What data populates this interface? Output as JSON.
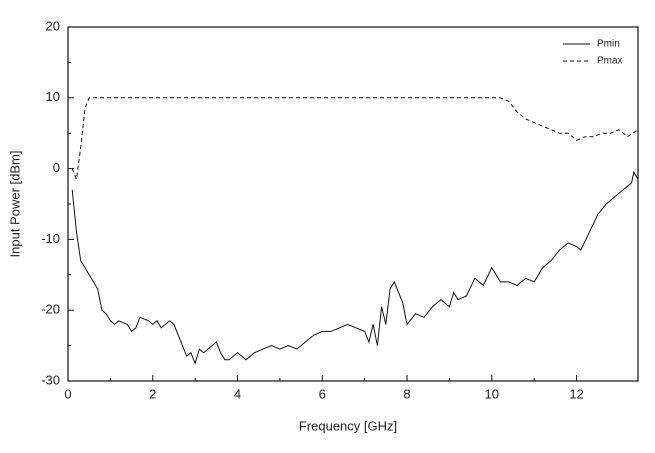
{
  "chart_data": {
    "type": "line",
    "x_label": "Frequency [GHz]",
    "y_label": "Input Power [dBm]",
    "xlim": [
      0,
      13.45
    ],
    "xticks": [
      0,
      2,
      4,
      6,
      8,
      10,
      12
    ],
    "ylim": [
      -30,
      20
    ],
    "yticks": [
      -30,
      -20,
      -10,
      0,
      10,
      20
    ],
    "legend": "upper right",
    "series": [
      {
        "name": "Pmin",
        "color": "#111111",
        "dash": "solid",
        "x": [
          0.1,
          0.2,
          0.3,
          0.5,
          0.7,
          0.8,
          0.9,
          1.0,
          1.1,
          1.2,
          1.4,
          1.5,
          1.6,
          1.7,
          1.9,
          2.0,
          2.1,
          2.2,
          2.4,
          2.5,
          2.6,
          2.7,
          2.8,
          2.9,
          3.0,
          3.1,
          3.2,
          3.4,
          3.5,
          3.6,
          3.7,
          3.8,
          3.9,
          4.0,
          4.1,
          4.2,
          4.4,
          4.6,
          4.8,
          5.0,
          5.2,
          5.4,
          5.6,
          5.8,
          6.0,
          6.2,
          6.4,
          6.6,
          6.8,
          7.0,
          7.1,
          7.2,
          7.3,
          7.4,
          7.5,
          7.6,
          7.7,
          7.8,
          7.9,
          8.0,
          8.2,
          8.4,
          8.6,
          8.8,
          9.0,
          9.1,
          9.2,
          9.4,
          9.6,
          9.8,
          10.0,
          10.2,
          10.4,
          10.6,
          10.8,
          11.0,
          11.2,
          11.4,
          11.6,
          11.8,
          12.0,
          12.1,
          12.3,
          12.5,
          12.7,
          12.9,
          13.1,
          13.3,
          13.35,
          13.45
        ],
        "values": [
          -3,
          -9,
          -13,
          -15,
          -17,
          -20,
          -20.5,
          -21.5,
          -22,
          -21.5,
          -22,
          -23,
          -22.5,
          -21,
          -21.5,
          -22,
          -21.5,
          -22.5,
          -21.5,
          -22,
          -23.5,
          -25,
          -26.5,
          -26,
          -27.5,
          -25.5,
          -26,
          -25,
          -24.5,
          -26,
          -27,
          -27,
          -26.5,
          -26,
          -26.5,
          -27,
          -26,
          -25.5,
          -25,
          -25.5,
          -25,
          -25.5,
          -24.5,
          -23.5,
          -23,
          -23,
          -22.5,
          -22,
          -22.5,
          -23,
          -24.5,
          -22,
          -25,
          -19.5,
          -22,
          -17,
          -16,
          -17.5,
          -19,
          -22,
          -20.5,
          -21,
          -19.5,
          -18.5,
          -19.5,
          -17.5,
          -18.5,
          -18,
          -15.5,
          -16.5,
          -14,
          -16,
          -16,
          -16.5,
          -15.5,
          -16,
          -14,
          -13,
          -11.5,
          -10.5,
          -11,
          -11.5,
          -9,
          -6.5,
          -5,
          -4,
          -3,
          -2,
          -0.5,
          -1.5
        ]
      },
      {
        "name": "Pmax",
        "color": "#111111",
        "dash": "dashed",
        "x": [
          0.1,
          0.2,
          0.3,
          0.4,
          0.5,
          1.0,
          2.0,
          3.0,
          4.0,
          5.0,
          6.0,
          7.0,
          8.0,
          9.0,
          10.0,
          10.2,
          10.4,
          10.6,
          10.8,
          11.0,
          11.2,
          11.4,
          11.6,
          11.8,
          12.0,
          12.2,
          12.4,
          12.6,
          12.8,
          13.0,
          13.2,
          13.45
        ],
        "values": [
          0,
          -1.5,
          3,
          8.5,
          10,
          10,
          10,
          10,
          10,
          10,
          10,
          10,
          10,
          10,
          10,
          10,
          9.5,
          8,
          7,
          6.5,
          6,
          5.5,
          5,
          5,
          4,
          4.5,
          4.5,
          5,
          5,
          5.5,
          4.5,
          5.5
        ]
      }
    ]
  }
}
